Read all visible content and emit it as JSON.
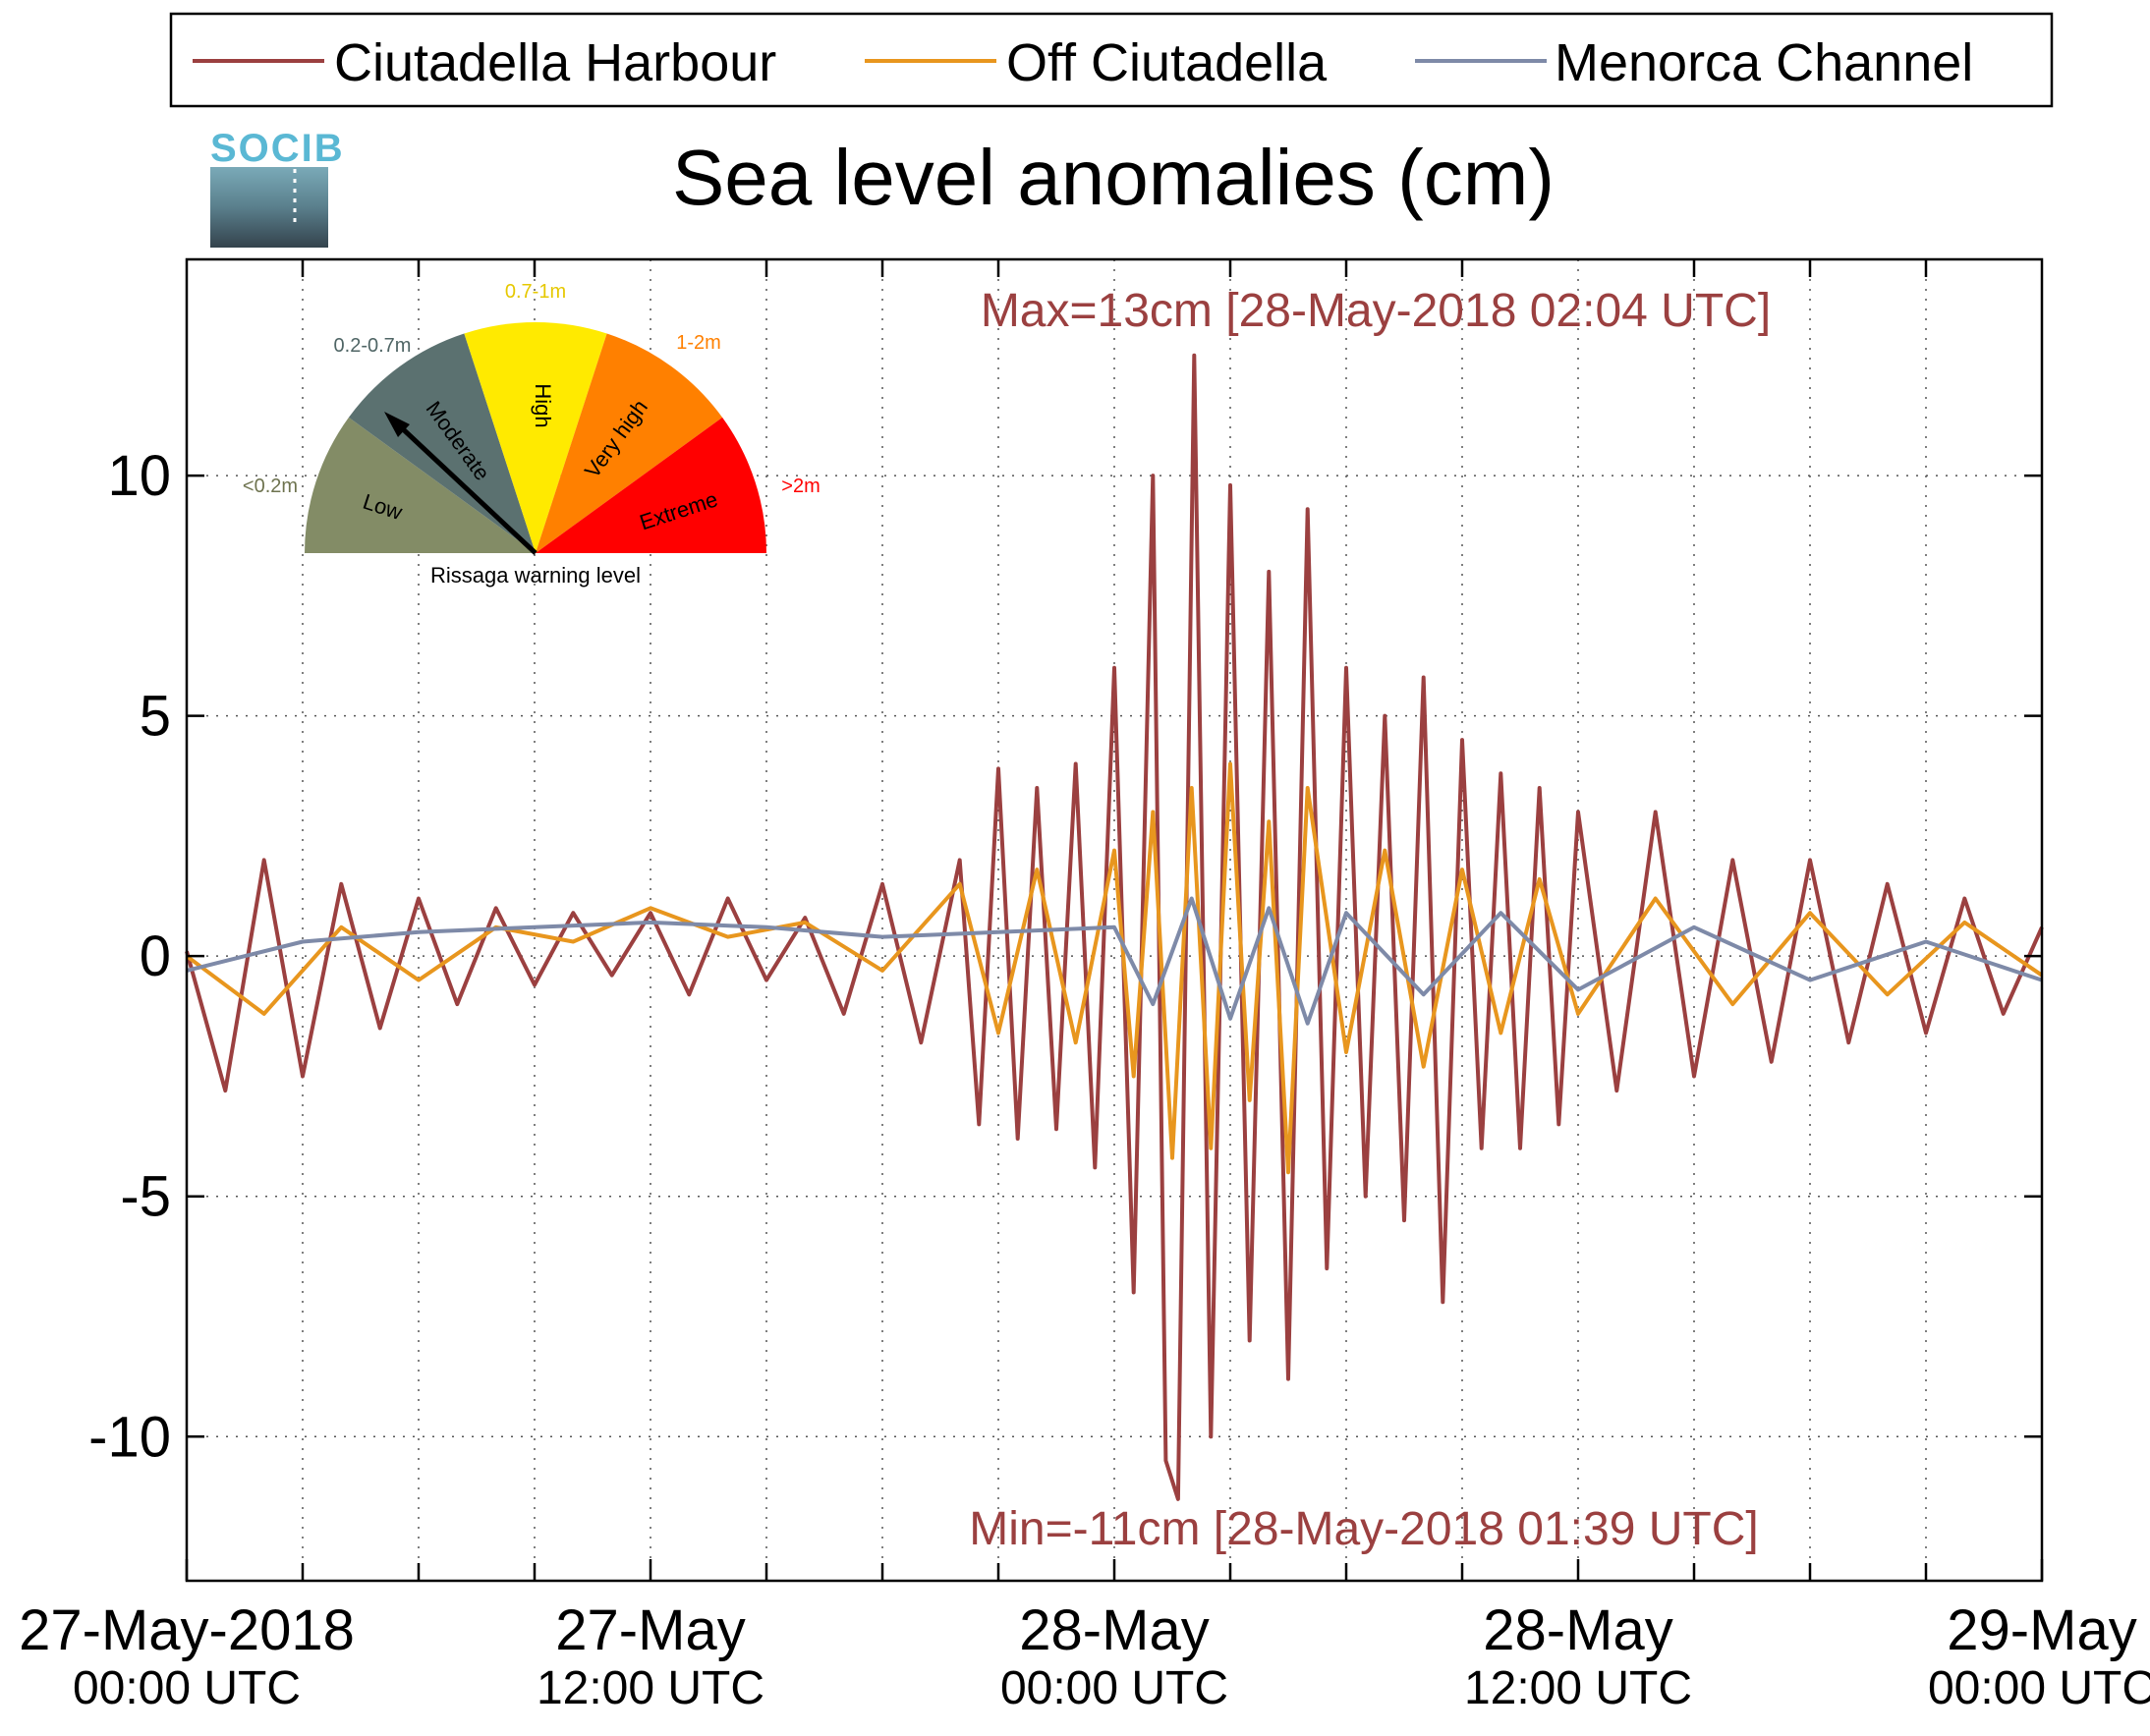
{
  "legend": {
    "position": "top",
    "entries": [
      {
        "label": "Ciutadella Harbour",
        "color": "#9b4040"
      },
      {
        "label": "Off Ciutadella",
        "color": "#e8961e"
      },
      {
        "label": "Menorca Channel",
        "color": "#7e8aa8"
      }
    ]
  },
  "logo": {
    "text": "SOCIB"
  },
  "chart_data": {
    "type": "line",
    "title": "Sea level anomalies (cm)",
    "xlabel": "",
    "ylabel": "",
    "xlim": [
      "2018-05-27 00:00",
      "2018-05-29 00:00"
    ],
    "ylim": [
      -13,
      14.5
    ],
    "yticks": [
      -10,
      -5,
      0,
      5,
      10
    ],
    "xticks": [
      {
        "value": "2018-05-27 00:00",
        "line1": "27-May-2018",
        "line2": "00:00 UTC"
      },
      {
        "value": "2018-05-27 12:00",
        "line1": "27-May",
        "line2": "12:00 UTC"
      },
      {
        "value": "2018-05-28 00:00",
        "line1": "28-May",
        "line2": "00:00 UTC"
      },
      {
        "value": "2018-05-28 12:00",
        "line1": "28-May",
        "line2": "12:00 UTC"
      },
      {
        "value": "2018-05-29 00:00",
        "line1": "29-May",
        "line2": "00:00 UTC"
      }
    ],
    "minor_xticks_hours": [
      3,
      6,
      9,
      15,
      18,
      21,
      27,
      30,
      33,
      39,
      42,
      45
    ],
    "grid": true,
    "annotations": {
      "max": "Max=13cm [28-May-2018 02:04 UTC]",
      "min": "Min=-11cm [28-May-2018 01:39 UTC]"
    },
    "series": [
      {
        "name": "Ciutadella Harbour",
        "color": "#9b4040",
        "x": [
          "2018-05-27 00:00",
          "2018-05-27 01:00",
          "2018-05-27 02:00",
          "2018-05-27 03:00",
          "2018-05-27 04:00",
          "2018-05-27 05:00",
          "2018-05-27 06:00",
          "2018-05-27 07:00",
          "2018-05-27 08:00",
          "2018-05-27 09:00",
          "2018-05-27 10:00",
          "2018-05-27 11:00",
          "2018-05-27 12:00",
          "2018-05-27 13:00",
          "2018-05-27 14:00",
          "2018-05-27 15:00",
          "2018-05-27 16:00",
          "2018-05-27 17:00",
          "2018-05-27 18:00",
          "2018-05-27 19:00",
          "2018-05-27 20:00",
          "2018-05-27 20:30",
          "2018-05-27 21:00",
          "2018-05-27 21:30",
          "2018-05-27 22:00",
          "2018-05-27 22:30",
          "2018-05-27 23:00",
          "2018-05-27 23:30",
          "2018-05-28 00:00",
          "2018-05-28 00:30",
          "2018-05-28 01:00",
          "2018-05-28 01:20",
          "2018-05-28 01:39",
          "2018-05-28 02:04",
          "2018-05-28 02:30",
          "2018-05-28 03:00",
          "2018-05-28 03:30",
          "2018-05-28 04:00",
          "2018-05-28 04:30",
          "2018-05-28 05:00",
          "2018-05-28 05:30",
          "2018-05-28 06:00",
          "2018-05-28 06:30",
          "2018-05-28 07:00",
          "2018-05-28 07:30",
          "2018-05-28 08:00",
          "2018-05-28 08:30",
          "2018-05-28 09:00",
          "2018-05-28 09:30",
          "2018-05-28 10:00",
          "2018-05-28 10:30",
          "2018-05-28 11:00",
          "2018-05-28 11:30",
          "2018-05-28 12:00",
          "2018-05-28 13:00",
          "2018-05-28 14:00",
          "2018-05-28 15:00",
          "2018-05-28 16:00",
          "2018-05-28 17:00",
          "2018-05-28 18:00",
          "2018-05-28 19:00",
          "2018-05-28 20:00",
          "2018-05-28 21:00",
          "2018-05-28 22:00",
          "2018-05-28 23:00",
          "2018-05-29 00:00"
        ],
        "y": [
          0.1,
          -2.8,
          2.0,
          -2.5,
          1.5,
          -1.5,
          1.2,
          -1.0,
          1.0,
          -0.6,
          0.9,
          -0.4,
          0.9,
          -0.8,
          1.2,
          -0.5,
          0.8,
          -1.2,
          1.5,
          -1.8,
          2.0,
          -3.5,
          3.9,
          -3.8,
          3.5,
          -3.6,
          4.0,
          -4.4,
          6.0,
          -7.0,
          10.0,
          -10.5,
          -11.3,
          12.5,
          -10.0,
          9.8,
          -8.0,
          8.0,
          -8.8,
          9.3,
          -6.5,
          6.0,
          -5.0,
          5.0,
          -5.5,
          5.8,
          -7.2,
          4.5,
          -4.0,
          3.8,
          -4.0,
          3.5,
          -3.5,
          3.0,
          -2.8,
          3.0,
          -2.5,
          2.0,
          -2.2,
          2.0,
          -1.8,
          1.5,
          -1.6,
          1.2,
          -1.2,
          0.6
        ]
      },
      {
        "name": "Off Ciutadella",
        "color": "#e8961e",
        "x": [
          "2018-05-27 00:00",
          "2018-05-27 02:00",
          "2018-05-27 04:00",
          "2018-05-27 06:00",
          "2018-05-27 08:00",
          "2018-05-27 10:00",
          "2018-05-27 12:00",
          "2018-05-27 14:00",
          "2018-05-27 16:00",
          "2018-05-27 18:00",
          "2018-05-27 20:00",
          "2018-05-27 21:00",
          "2018-05-27 22:00",
          "2018-05-27 23:00",
          "2018-05-28 00:00",
          "2018-05-28 00:30",
          "2018-05-28 01:00",
          "2018-05-28 01:30",
          "2018-05-28 02:00",
          "2018-05-28 02:30",
          "2018-05-28 03:00",
          "2018-05-28 03:30",
          "2018-05-28 04:00",
          "2018-05-28 04:30",
          "2018-05-28 05:00",
          "2018-05-28 06:00",
          "2018-05-28 07:00",
          "2018-05-28 08:00",
          "2018-05-28 09:00",
          "2018-05-28 10:00",
          "2018-05-28 11:00",
          "2018-05-28 12:00",
          "2018-05-28 14:00",
          "2018-05-28 16:00",
          "2018-05-28 18:00",
          "2018-05-28 20:00",
          "2018-05-28 22:00",
          "2018-05-29 00:00"
        ],
        "y": [
          0.0,
          -1.2,
          0.6,
          -0.5,
          0.6,
          0.3,
          1.0,
          0.4,
          0.7,
          -0.3,
          1.5,
          -1.6,
          1.8,
          -1.8,
          2.2,
          -2.5,
          3.0,
          -4.2,
          3.5,
          -4.0,
          4.0,
          -3.0,
          2.8,
          -4.5,
          3.5,
          -2.0,
          2.2,
          -2.3,
          1.8,
          -1.6,
          1.6,
          -1.2,
          1.2,
          -1.0,
          0.9,
          -0.8,
          0.7,
          -0.4
        ]
      },
      {
        "name": "Menorca Channel",
        "color": "#7e8aa8",
        "x": [
          "2018-05-27 00:00",
          "2018-05-27 03:00",
          "2018-05-27 06:00",
          "2018-05-27 09:00",
          "2018-05-27 12:00",
          "2018-05-27 15:00",
          "2018-05-27 18:00",
          "2018-05-27 21:00",
          "2018-05-28 00:00",
          "2018-05-28 01:00",
          "2018-05-28 02:00",
          "2018-05-28 03:00",
          "2018-05-28 04:00",
          "2018-05-28 05:00",
          "2018-05-28 06:00",
          "2018-05-28 08:00",
          "2018-05-28 10:00",
          "2018-05-28 12:00",
          "2018-05-28 15:00",
          "2018-05-28 18:00",
          "2018-05-28 21:00",
          "2018-05-29 00:00"
        ],
        "y": [
          -0.3,
          0.3,
          0.5,
          0.6,
          0.7,
          0.6,
          0.4,
          0.5,
          0.6,
          -1.0,
          1.2,
          -1.3,
          1.0,
          -1.4,
          0.9,
          -0.8,
          0.9,
          -0.7,
          0.6,
          -0.5,
          0.3,
          -0.5
        ]
      }
    ]
  },
  "rissaga_gauge": {
    "caption": "Rissaga warning level",
    "pointer_level": "Moderate",
    "levels": [
      {
        "name": "Low",
        "range": "<0.2m",
        "color": "#838c66"
      },
      {
        "name": "Moderate",
        "range": "0.2-0.7m",
        "color": "#5b7170"
      },
      {
        "name": "High",
        "range": "0.7-1m",
        "color": "#ffea00"
      },
      {
        "name": "Very high",
        "range": "1-2m",
        "color": "#ff8000"
      },
      {
        "name": "Extreme",
        "range": ">2m",
        "color": "#ff0000"
      }
    ],
    "range_label_colors": [
      "#6e734f",
      "#4f6565",
      "#e6c800",
      "#ff8000",
      "#ff0000"
    ]
  }
}
